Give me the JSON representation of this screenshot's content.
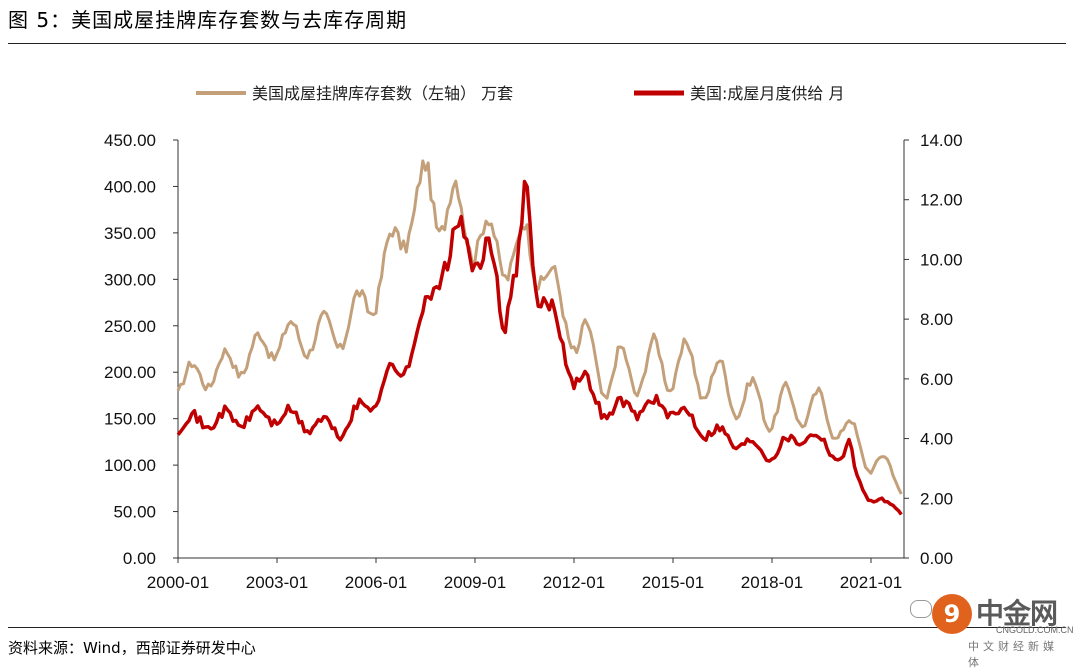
{
  "figure": {
    "title": "图 5：美国成屋挂牌库存套数与去库存周期",
    "source": "资料来源：Wind，西部证券研发中心"
  },
  "watermark": {
    "name": "中金网",
    "url": "CNGOLD.COM.CN",
    "subtitle": "中文财经新媒体",
    "logo_glyph": "9"
  },
  "chart_data": {
    "type": "line",
    "x_start": "2000-01",
    "x_end": "2021-12",
    "x_tick_labels": [
      "2000-01",
      "2003-01",
      "2006-01",
      "2009-01",
      "2012-01",
      "2015-01",
      "2018-01",
      "2021-01"
    ],
    "y_left": {
      "min": 0,
      "max": 450,
      "ticks": [
        "0.00",
        "50.00",
        "100.00",
        "150.00",
        "200.00",
        "250.00",
        "300.00",
        "350.00",
        "400.00",
        "450.00"
      ]
    },
    "y_right": {
      "min": 0,
      "max": 14,
      "ticks": [
        "0.00",
        "2.00",
        "4.00",
        "6.00",
        "8.00",
        "10.00",
        "12.00",
        "14.00"
      ]
    },
    "legend_position": "top",
    "series": [
      {
        "name": "美国成屋挂牌库存套数（左轴） 万套",
        "axis": "left",
        "color": "#c4a07a",
        "annual_anchors_jan": [
          [
            2000,
            190
          ],
          [
            2001,
            200
          ],
          [
            2002,
            215
          ],
          [
            2003,
            235
          ],
          [
            2004,
            238
          ],
          [
            2005,
            245
          ],
          [
            2006,
            290
          ],
          [
            2007,
            372
          ],
          [
            2008,
            378
          ],
          [
            2009,
            350
          ],
          [
            2010,
            325
          ],
          [
            2011,
            318
          ],
          [
            2012,
            240
          ],
          [
            2013,
            195
          ],
          [
            2014,
            205
          ],
          [
            2015,
            210
          ],
          [
            2016,
            196
          ],
          [
            2017,
            175
          ],
          [
            2018,
            160
          ],
          [
            2019,
            165
          ],
          [
            2020,
            147
          ],
          [
            2021,
            106
          ],
          [
            2021.92,
            85
          ]
        ],
        "notable_points": [
          {
            "date": "2007-07",
            "value": 405,
            "label": "peak"
          },
          {
            "date": "2021-12",
            "value": 85,
            "label": "latest"
          }
        ]
      },
      {
        "name": "美国:成屋月度供给 月",
        "axis": "right",
        "color": "#c00000",
        "annual_anchors_jan": [
          [
            2000,
            4.5
          ],
          [
            2001,
            4.6
          ],
          [
            2002,
            4.7
          ],
          [
            2003,
            4.8
          ],
          [
            2004,
            4.5
          ],
          [
            2005,
            4.3
          ],
          [
            2006,
            5.5
          ],
          [
            2007,
            6.7
          ],
          [
            2008,
            9.9
          ],
          [
            2009,
            10.2
          ],
          [
            2010,
            9.2
          ],
          [
            2011,
            9.0
          ],
          [
            2012,
            6.2
          ],
          [
            2013,
            4.9
          ],
          [
            2014,
            5.1
          ],
          [
            2015,
            5.0
          ],
          [
            2016,
            4.3
          ],
          [
            2017,
            3.9
          ],
          [
            2018,
            3.5
          ],
          [
            2019,
            4.2
          ],
          [
            2020,
            3.5
          ],
          [
            2021,
            2.0
          ],
          [
            2021.92,
            1.6
          ]
        ],
        "notable_points": [
          {
            "date": "2010-07",
            "value": 12.5,
            "label": "peak"
          },
          {
            "date": "2021-12",
            "value": 1.6,
            "label": "latest"
          }
        ]
      }
    ]
  }
}
